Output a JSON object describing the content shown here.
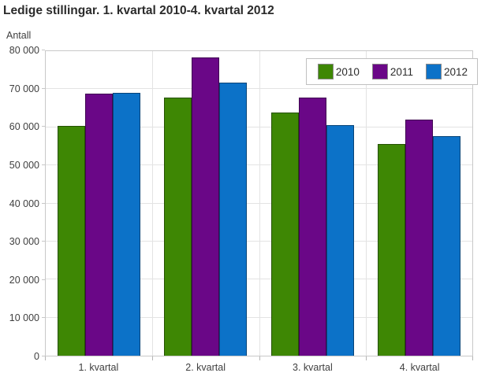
{
  "title": "Ledige stillingar. 1. kvartal 2010-4. kvartal 2012",
  "chart_data": {
    "type": "bar",
    "title": "Ledige stillingar. 1. kvartal 2010-4. kvartal 2012",
    "ylabel": "Antall",
    "xlabel": "",
    "categories": [
      "1. kvartal",
      "2. kvartal",
      "3. kvartal",
      "4. kvartal"
    ],
    "series": [
      {
        "name": "2010",
        "color": "#3e8704",
        "values": [
          60300,
          67800,
          63900,
          55700
        ]
      },
      {
        "name": "2011",
        "color": "#6a0787",
        "values": [
          68800,
          78300,
          67900,
          62100
        ]
      },
      {
        "name": "2012",
        "color": "#0c72c8",
        "values": [
          69100,
          71800,
          60600,
          57700
        ]
      }
    ],
    "ylim": [
      0,
      80000
    ],
    "yticks": [
      {
        "value": 0,
        "label": "0"
      },
      {
        "value": 10000,
        "label": "10 000"
      },
      {
        "value": 20000,
        "label": "20 000"
      },
      {
        "value": 30000,
        "label": "30 000"
      },
      {
        "value": 40000,
        "label": "40 000"
      },
      {
        "value": 50000,
        "label": "50 000"
      },
      {
        "value": 60000,
        "label": "60 000"
      },
      {
        "value": 70000,
        "label": "70 000"
      },
      {
        "value": 80000,
        "label": "80 000"
      }
    ],
    "grid": true,
    "legend_position": "top-right"
  }
}
